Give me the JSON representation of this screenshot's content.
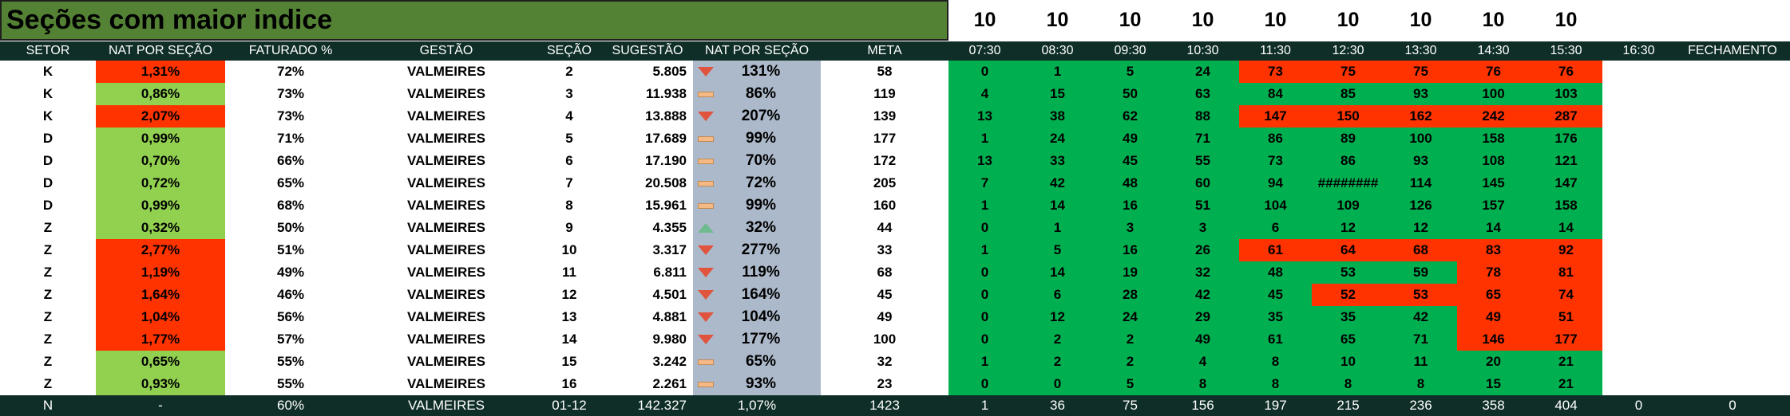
{
  "title": "Seções com maior indice",
  "slot_top_values": [
    "10",
    "10",
    "10",
    "10",
    "10",
    "10",
    "10",
    "10",
    "10"
  ],
  "headers": {
    "setor": "SETOR",
    "nat_por_secao": "NAT POR SEÇÃO",
    "faturado": "FATURADO %",
    "gestao": "GESTÃO",
    "secao": "SEÇÃO",
    "sugestao": "SUGESTÃO",
    "nat_por_secao_2": "NAT POR SEÇÃO",
    "meta": "META",
    "times": [
      "07:30",
      "08:30",
      "09:30",
      "10:30",
      "11:30",
      "12:30",
      "13:30",
      "14:30",
      "15:30",
      "16:30",
      "FECHAMENTO"
    ]
  },
  "colors": {
    "title_bg": "#548235",
    "header_bg": "#0f2e28",
    "nat_good": "#92d050",
    "nat_bad": "#ff3300",
    "nat2_bg": "#acb9ca",
    "hour_good": "#00b050",
    "hour_bad": "#ff3300"
  },
  "rows": [
    {
      "setor": "K",
      "nat": "1,31%",
      "nat_status": "bad",
      "faturado": "72%",
      "gestao": "VALMEIRES",
      "secao": "2",
      "sugestao": "5.805",
      "indicator": "down",
      "nat2": "131%",
      "meta": "58",
      "hours": [
        "0",
        "1",
        "5",
        "24",
        "73",
        "75",
        "75",
        "76",
        "76"
      ],
      "hour_status": [
        "g",
        "g",
        "g",
        "g",
        "r",
        "r",
        "r",
        "r",
        "r"
      ]
    },
    {
      "setor": "K",
      "nat": "0,86%",
      "nat_status": "good",
      "faturado": "73%",
      "gestao": "VALMEIRES",
      "secao": "3",
      "sugestao": "11.938",
      "indicator": "flat",
      "nat2": "86%",
      "meta": "119",
      "hours": [
        "4",
        "15",
        "50",
        "63",
        "84",
        "85",
        "93",
        "100",
        "103"
      ],
      "hour_status": [
        "g",
        "g",
        "g",
        "g",
        "g",
        "g",
        "g",
        "g",
        "g"
      ]
    },
    {
      "setor": "K",
      "nat": "2,07%",
      "nat_status": "bad",
      "faturado": "73%",
      "gestao": "VALMEIRES",
      "secao": "4",
      "sugestao": "13.888",
      "indicator": "down",
      "nat2": "207%",
      "meta": "139",
      "hours": [
        "13",
        "38",
        "62",
        "88",
        "147",
        "150",
        "162",
        "242",
        "287"
      ],
      "hour_status": [
        "g",
        "g",
        "g",
        "g",
        "r",
        "r",
        "r",
        "r",
        "r"
      ]
    },
    {
      "setor": "D",
      "nat": "0,99%",
      "nat_status": "good",
      "faturado": "71%",
      "gestao": "VALMEIRES",
      "secao": "5",
      "sugestao": "17.689",
      "indicator": "flat",
      "nat2": "99%",
      "meta": "177",
      "hours": [
        "1",
        "24",
        "49",
        "71",
        "86",
        "89",
        "100",
        "158",
        "176"
      ],
      "hour_status": [
        "g",
        "g",
        "g",
        "g",
        "g",
        "g",
        "g",
        "g",
        "g"
      ]
    },
    {
      "setor": "D",
      "nat": "0,70%",
      "nat_status": "good",
      "faturado": "66%",
      "gestao": "VALMEIRES",
      "secao": "6",
      "sugestao": "17.190",
      "indicator": "flat",
      "nat2": "70%",
      "meta": "172",
      "hours": [
        "13",
        "33",
        "45",
        "55",
        "73",
        "86",
        "93",
        "108",
        "121"
      ],
      "hour_status": [
        "g",
        "g",
        "g",
        "g",
        "g",
        "g",
        "g",
        "g",
        "g"
      ]
    },
    {
      "setor": "D",
      "nat": "0,72%",
      "nat_status": "good",
      "faturado": "65%",
      "gestao": "VALMEIRES",
      "secao": "7",
      "sugestao": "20.508",
      "indicator": "flat",
      "nat2": "72%",
      "meta": "205",
      "hours": [
        "7",
        "42",
        "48",
        "60",
        "94",
        "########",
        "114",
        "145",
        "147"
      ],
      "hour_status": [
        "g",
        "g",
        "g",
        "g",
        "g",
        "g",
        "g",
        "g",
        "g"
      ]
    },
    {
      "setor": "D",
      "nat": "0,99%",
      "nat_status": "good",
      "faturado": "68%",
      "gestao": "VALMEIRES",
      "secao": "8",
      "sugestao": "15.961",
      "indicator": "flat",
      "nat2": "99%",
      "meta": "160",
      "hours": [
        "1",
        "14",
        "16",
        "51",
        "104",
        "109",
        "126",
        "157",
        "158"
      ],
      "hour_status": [
        "g",
        "g",
        "g",
        "g",
        "g",
        "g",
        "g",
        "g",
        "g"
      ]
    },
    {
      "setor": "Z",
      "nat": "0,32%",
      "nat_status": "good",
      "faturado": "50%",
      "gestao": "VALMEIRES",
      "secao": "9",
      "sugestao": "4.355",
      "indicator": "up",
      "nat2": "32%",
      "meta": "44",
      "hours": [
        "0",
        "1",
        "3",
        "3",
        "6",
        "12",
        "12",
        "14",
        "14"
      ],
      "hour_status": [
        "g",
        "g",
        "g",
        "g",
        "g",
        "g",
        "g",
        "g",
        "g"
      ]
    },
    {
      "setor": "Z",
      "nat": "2,77%",
      "nat_status": "bad",
      "faturado": "51%",
      "gestao": "VALMEIRES",
      "secao": "10",
      "sugestao": "3.317",
      "indicator": "down",
      "nat2": "277%",
      "meta": "33",
      "hours": [
        "1",
        "5",
        "16",
        "26",
        "61",
        "64",
        "68",
        "83",
        "92"
      ],
      "hour_status": [
        "g",
        "g",
        "g",
        "g",
        "r",
        "r",
        "r",
        "r",
        "r"
      ]
    },
    {
      "setor": "Z",
      "nat": "1,19%",
      "nat_status": "bad",
      "faturado": "49%",
      "gestao": "VALMEIRES",
      "secao": "11",
      "sugestao": "6.811",
      "indicator": "down",
      "nat2": "119%",
      "meta": "68",
      "hours": [
        "0",
        "14",
        "19",
        "32",
        "48",
        "53",
        "59",
        "78",
        "81"
      ],
      "hour_status": [
        "g",
        "g",
        "g",
        "g",
        "g",
        "g",
        "g",
        "r",
        "r"
      ]
    },
    {
      "setor": "Z",
      "nat": "1,64%",
      "nat_status": "bad",
      "faturado": "46%",
      "gestao": "VALMEIRES",
      "secao": "12",
      "sugestao": "4.501",
      "indicator": "down",
      "nat2": "164%",
      "meta": "45",
      "hours": [
        "0",
        "6",
        "28",
        "42",
        "45",
        "52",
        "53",
        "65",
        "74"
      ],
      "hour_status": [
        "g",
        "g",
        "g",
        "g",
        "g",
        "r",
        "r",
        "r",
        "r"
      ]
    },
    {
      "setor": "Z",
      "nat": "1,04%",
      "nat_status": "bad",
      "faturado": "56%",
      "gestao": "VALMEIRES",
      "secao": "13",
      "sugestao": "4.881",
      "indicator": "down",
      "nat2": "104%",
      "meta": "49",
      "hours": [
        "0",
        "12",
        "24",
        "29",
        "35",
        "35",
        "42",
        "49",
        "51"
      ],
      "hour_status": [
        "g",
        "g",
        "g",
        "g",
        "g",
        "g",
        "g",
        "r",
        "r"
      ]
    },
    {
      "setor": "Z",
      "nat": "1,77%",
      "nat_status": "bad",
      "faturado": "57%",
      "gestao": "VALMEIRES",
      "secao": "14",
      "sugestao": "9.980",
      "indicator": "down",
      "nat2": "177%",
      "meta": "100",
      "hours": [
        "0",
        "2",
        "2",
        "49",
        "61",
        "65",
        "71",
        "146",
        "177"
      ],
      "hour_status": [
        "g",
        "g",
        "g",
        "g",
        "g",
        "g",
        "g",
        "r",
        "r"
      ]
    },
    {
      "setor": "Z",
      "nat": "0,65%",
      "nat_status": "good",
      "faturado": "55%",
      "gestao": "VALMEIRES",
      "secao": "15",
      "sugestao": "3.242",
      "indicator": "flat",
      "nat2": "65%",
      "meta": "32",
      "hours": [
        "1",
        "2",
        "2",
        "4",
        "8",
        "10",
        "11",
        "20",
        "21"
      ],
      "hour_status": [
        "g",
        "g",
        "g",
        "g",
        "g",
        "g",
        "g",
        "g",
        "g"
      ]
    },
    {
      "setor": "Z",
      "nat": "0,93%",
      "nat_status": "good",
      "faturado": "55%",
      "gestao": "VALMEIRES",
      "secao": "16",
      "sugestao": "2.261",
      "indicator": "flat",
      "nat2": "93%",
      "meta": "23",
      "hours": [
        "0",
        "0",
        "5",
        "8",
        "8",
        "8",
        "8",
        "15",
        "21"
      ],
      "hour_status": [
        "g",
        "g",
        "g",
        "g",
        "g",
        "g",
        "g",
        "g",
        "g"
      ]
    }
  ],
  "total": {
    "setor": "N",
    "nat": "-",
    "faturado": "60%",
    "gestao": "VALMEIRES",
    "secao": "01-12",
    "sugestao": "142.327",
    "nat2": "1,07%",
    "meta": "1423",
    "hours": [
      "1",
      "36",
      "75",
      "156",
      "197",
      "215",
      "236",
      "358",
      "404",
      "0",
      "0"
    ]
  }
}
